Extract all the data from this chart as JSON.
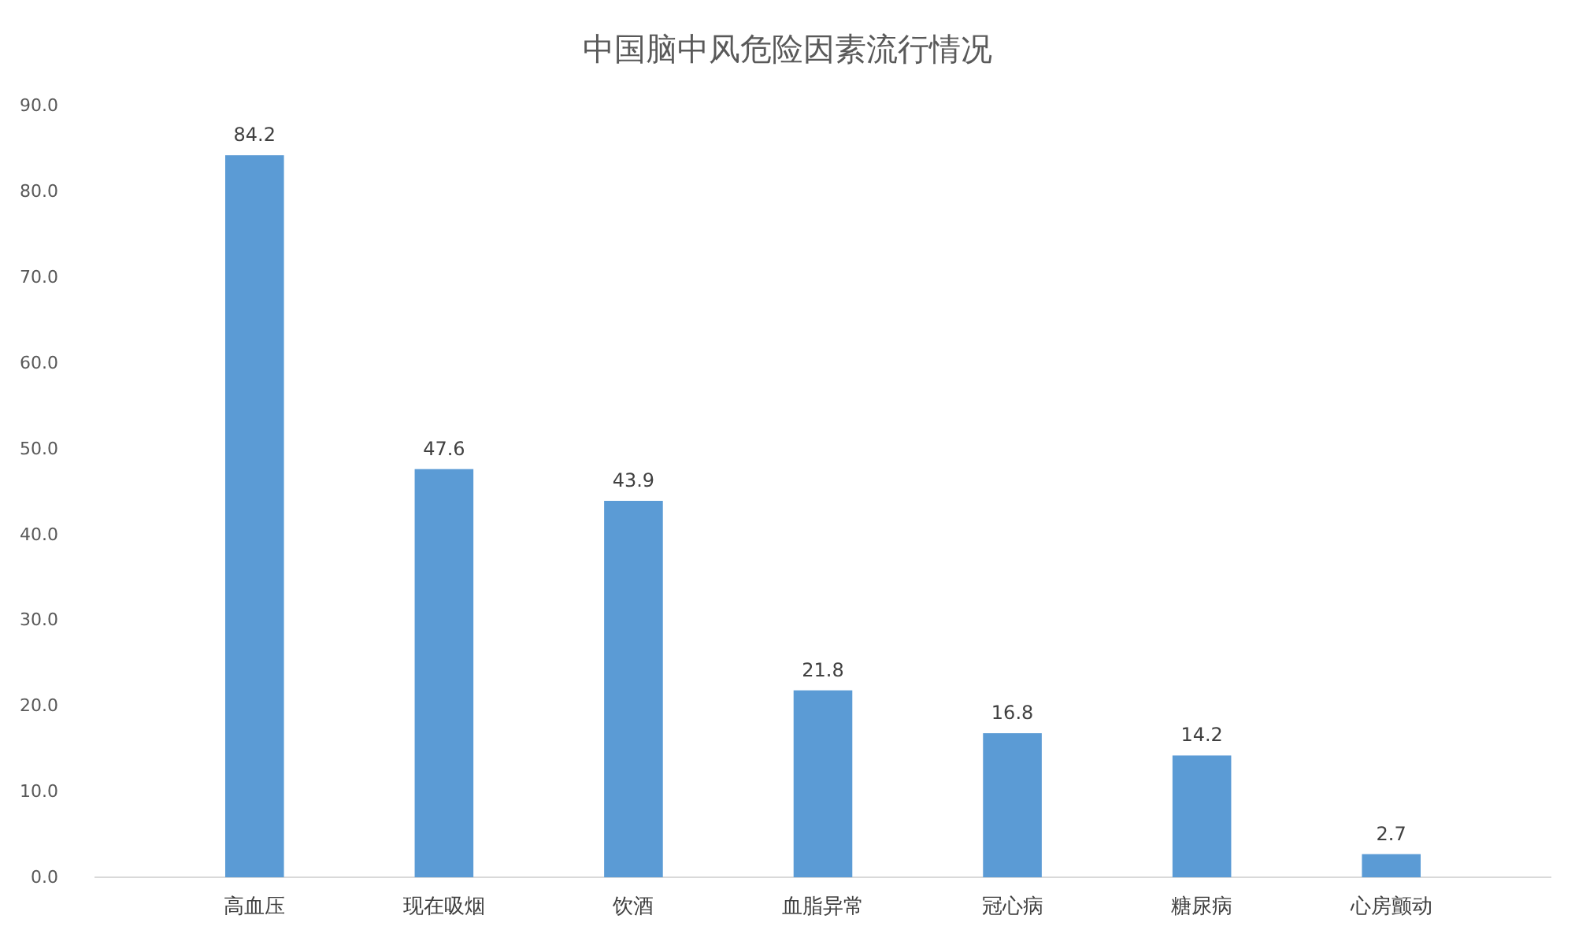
{
  "chart_data": {
    "type": "bar",
    "title": "中国脑中风危险因素流行情况",
    "categories": [
      "高血压",
      "现在吸烟",
      "饮酒",
      "血脂异常",
      "冠心病",
      "糖尿病",
      "心房颤动"
    ],
    "values": [
      84.2,
      47.6,
      43.9,
      21.8,
      16.8,
      14.2,
      2.7
    ],
    "color": "#5b9bd5",
    "ylim": [
      0,
      90
    ],
    "yticks": [
      {
        "value": 0,
        "label": "0.0"
      },
      {
        "value": 10,
        "label": "10.0"
      },
      {
        "value": 20,
        "label": "20.0"
      },
      {
        "value": 30,
        "label": "30.0"
      },
      {
        "value": 40,
        "label": "40.0"
      },
      {
        "value": 50,
        "label": "50.0"
      },
      {
        "value": 60,
        "label": "60.0"
      },
      {
        "value": 70,
        "label": "70.0"
      },
      {
        "value": 80,
        "label": "80.0"
      },
      {
        "value": 90,
        "label": "90.0"
      }
    ],
    "data_labels": true
  }
}
